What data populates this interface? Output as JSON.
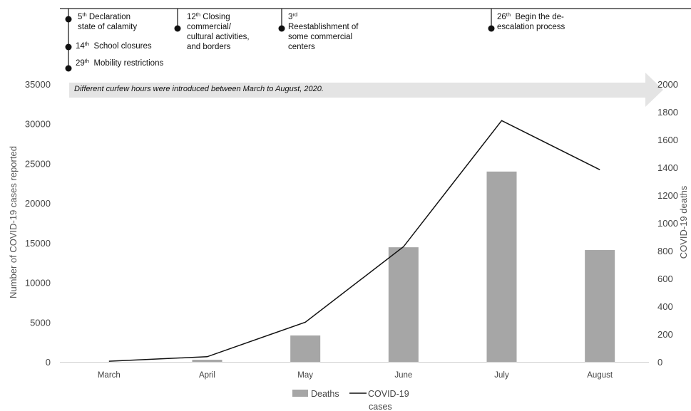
{
  "colors": {
    "bar": "#a6a6a6",
    "line": "#111111",
    "arrow": "#e4e4e4",
    "timeline": "#222222"
  },
  "events": [
    {
      "day": "5",
      "suffix": "th",
      "text": "Declaration",
      "text2": "state of calamity"
    },
    {
      "day": "14",
      "suffix": "th",
      "text": "School closures"
    },
    {
      "day": "29",
      "suffix": "th",
      "text": "Mobility restrictions"
    },
    {
      "day": "12",
      "suffix": "th",
      "text": "Closing",
      "text2": "commercial/",
      "text3": "cultural activities,",
      "text4": "and borders"
    },
    {
      "day": "3",
      "suffix": "rd",
      "text": "Reestablishment of",
      "text2": "some commercial",
      "text3": "centers"
    },
    {
      "day": "26",
      "suffix": "th",
      "text": "Begin the de-",
      "text2": "escalation process"
    }
  ],
  "curfew_note": "Different curfew hours were introduced between March to August, 2020.",
  "chart_data": {
    "type": "bar",
    "categories": [
      "March",
      "April",
      "May",
      "June",
      "July",
      "August"
    ],
    "series": [
      {
        "name": "Deaths",
        "type": "bar",
        "axis": "right",
        "values": [
          0,
          15,
          190,
          825,
          1370,
          805
        ]
      },
      {
        "name": "COVID-19 cases",
        "type": "line",
        "axis": "left",
        "values": [
          80,
          650,
          5000,
          14500,
          30400,
          24200
        ]
      }
    ],
    "ylabel": "Number of COVID-19 cases reported",
    "ylabel_right": "COVID-19 deaths",
    "ylim": [
      0,
      35000
    ],
    "yticks": [
      "35000",
      "30000",
      "25000",
      "20000",
      "15000",
      "10000",
      "5000",
      "0"
    ],
    "ylim_right": [
      0,
      2000
    ],
    "yticks_right": [
      "2000",
      "1800",
      "1600",
      "1400",
      "1200",
      "1000",
      "800",
      "600",
      "400",
      "200",
      "0"
    ],
    "legend": {
      "deaths": "Deaths",
      "cases_line1": "COVID-19",
      "cases_line2": "cases"
    },
    "grid": true,
    "legend_position": "bottom"
  }
}
